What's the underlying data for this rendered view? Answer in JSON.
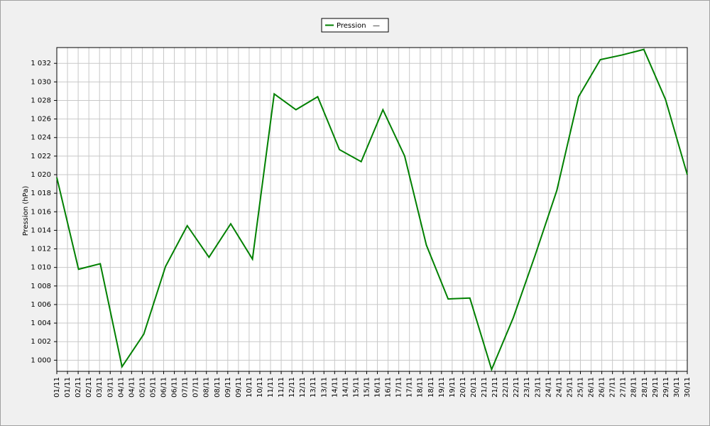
{
  "chart_data": {
    "type": "line",
    "legend_suffix": "—",
    "y_label": "Pression (hPa)",
    "xtick_labels": [
      "01/11",
      "01/11",
      "02/11",
      "02/11",
      "03/11",
      "03/11",
      "04/11",
      "04/11",
      "05/11",
      "05/11",
      "06/11",
      "06/11",
      "07/11",
      "07/11",
      "08/11",
      "08/11",
      "09/11",
      "09/11",
      "10/11",
      "10/11",
      "11/11",
      "11/11",
      "12/11",
      "12/11",
      "13/11",
      "13/11",
      "14/11",
      "14/11",
      "15/11",
      "15/11",
      "16/11",
      "16/11",
      "17/11",
      "17/11",
      "18/11",
      "18/11",
      "19/11",
      "19/11",
      "20/11",
      "20/11",
      "21/11",
      "21/11",
      "22/11",
      "22/11",
      "23/11",
      "23/11",
      "24/11",
      "24/11",
      "25/11",
      "25/11",
      "26/11",
      "26/11",
      "27/11",
      "27/11",
      "28/11",
      "28/11",
      "29/11",
      "29/11",
      "30/11",
      "30/11"
    ],
    "series": [
      {
        "name": "Pression",
        "color": "#008000",
        "values": [
          1019.7,
          1009.8,
          1010.4,
          999.3,
          1002.8,
          1010.1,
          1014.5,
          1011.1,
          1014.7,
          1010.9,
          1028.7,
          1027.0,
          1028.4,
          1022.7,
          1021.4,
          1027.0,
          1022.0,
          1012.4,
          1006.6,
          1006.7,
          999.0,
          1004.6,
          1011.3,
          1018.3,
          1028.4,
          1032.4,
          1032.9,
          1033.5,
          1028.1,
          1020.0
        ]
      }
    ],
    "ylim": [
      998.8,
      1033.7
    ],
    "yticks": [
      {
        "value": 1000,
        "label": "1 000"
      },
      {
        "value": 1002,
        "label": "1 002"
      },
      {
        "value": 1004,
        "label": "1 004"
      },
      {
        "value": 1006,
        "label": "1 006"
      },
      {
        "value": 1008,
        "label": "1 008"
      },
      {
        "value": 1010,
        "label": "1 010"
      },
      {
        "value": 1012,
        "label": "1 012"
      },
      {
        "value": 1014,
        "label": "1 014"
      },
      {
        "value": 1016,
        "label": "1 016"
      },
      {
        "value": 1018,
        "label": "1 018"
      },
      {
        "value": 1020,
        "label": "1 020"
      },
      {
        "value": 1022,
        "label": "1 022"
      },
      {
        "value": 1024,
        "label": "1 024"
      },
      {
        "value": 1026,
        "label": "1 026"
      },
      {
        "value": 1028,
        "label": "1 028"
      },
      {
        "value": 1030,
        "label": "1 030"
      },
      {
        "value": 1032,
        "label": "1 032"
      }
    ],
    "grid": true
  }
}
